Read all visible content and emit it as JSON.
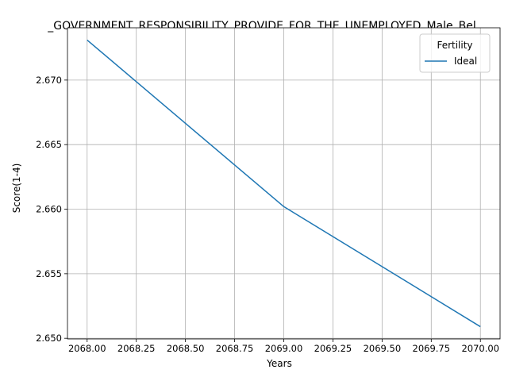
{
  "chart_data": {
    "type": "line",
    "title": "_GOVERNMENT_RESPONSIBILITY_PROVIDE_FOR_THE_UNEMPLOYED_Male_Bel",
    "xlabel": "Years",
    "ylabel": "Score(1-4)",
    "xlim": [
      2067.9,
      2070.1
    ],
    "ylim": [
      2.64995,
      2.67405
    ],
    "x_ticks": [
      2068.0,
      2068.25,
      2068.5,
      2068.75,
      2069.0,
      2069.25,
      2069.5,
      2069.75,
      2070.0
    ],
    "x_tick_labels": [
      "2068.00",
      "2068.25",
      "2068.50",
      "2068.75",
      "2069.00",
      "2069.25",
      "2069.50",
      "2069.75",
      "2070.00"
    ],
    "y_ticks": [
      2.65,
      2.655,
      2.66,
      2.665,
      2.67
    ],
    "y_tick_labels": [
      "2.650",
      "2.655",
      "2.660",
      "2.665",
      "2.670"
    ],
    "grid": true,
    "legend": {
      "title": "Fertility",
      "placement": "top-right"
    },
    "series": [
      {
        "name": "Ideal",
        "color": "#1f77b4",
        "x": [
          2068,
          2069,
          2070
        ],
        "y": [
          2.6731,
          2.6602,
          2.6509
        ]
      }
    ]
  }
}
